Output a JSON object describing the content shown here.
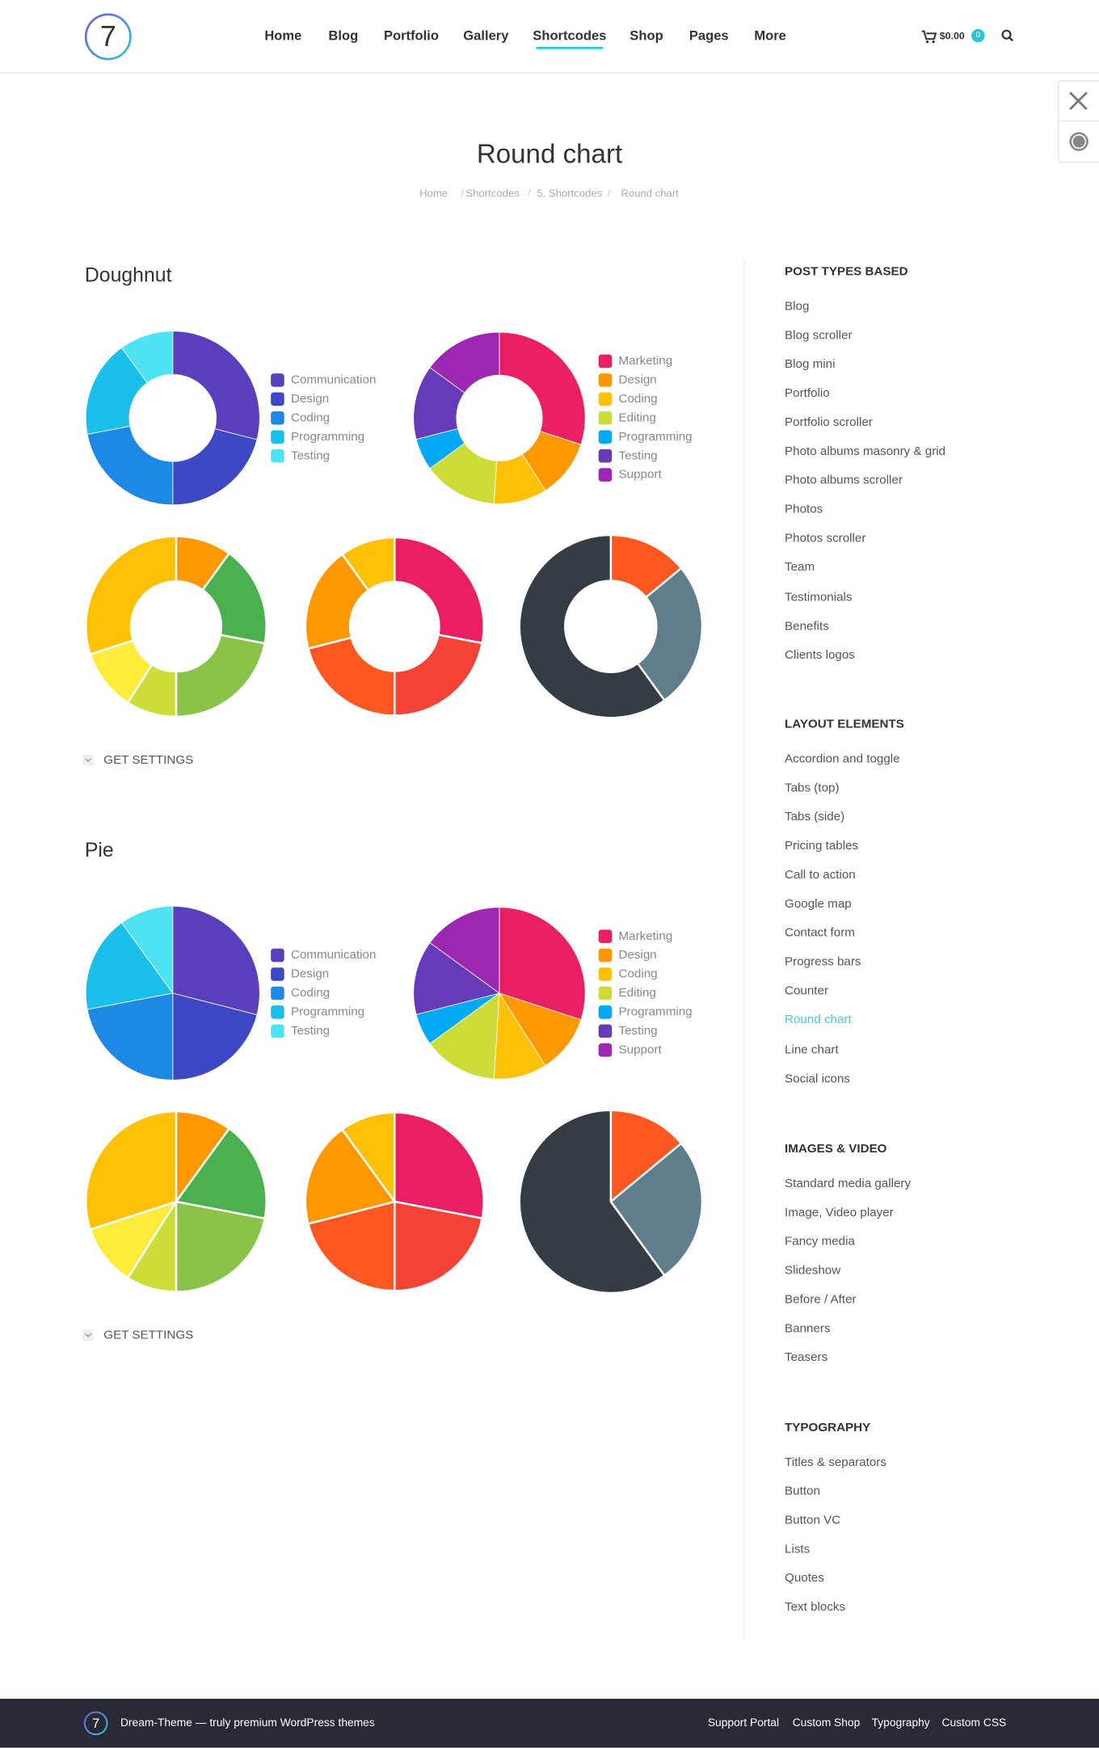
{
  "header": {
    "logo": "7",
    "nav": [
      "Home",
      "Blog",
      "Portfolio",
      "Gallery",
      "Shortcodes",
      "Shop",
      "Pages",
      "More"
    ],
    "active_nav": 4,
    "cart_total": "$0.00",
    "cart_count": 0
  },
  "page": {
    "title": "Round chart",
    "breadcrumbs": [
      "Home",
      "Shortcodes",
      "5. Shortcodes",
      "Round chart"
    ]
  },
  "sections": [
    {
      "title": "Doughnut",
      "settings_label": "GET SETTINGS",
      "chart_data": [
        {
          "type": "doughnut",
          "categories": [
            "Communication",
            "Design",
            "Coding",
            "Programming",
            "Testing"
          ],
          "values": [
            29,
            21,
            22,
            18,
            10
          ],
          "colors": [
            "#5a3fbd",
            "#3f48c4",
            "#1e88e5",
            "#1bc0ea",
            "#4de3f2"
          ]
        },
        {
          "type": "doughnut",
          "categories": [
            "Marketing",
            "Design",
            "Coding",
            "Editing",
            "Programming",
            "Testing",
            "Support"
          ],
          "values": [
            30,
            11,
            10,
            14,
            6,
            14,
            15
          ],
          "colors": [
            "#e91e63",
            "#ff9800",
            "#ffc107",
            "#cddc39",
            "#03a9f4",
            "#673ab7",
            "#9c27b0"
          ]
        },
        {
          "type": "doughnut",
          "values": [
            10,
            18,
            22,
            9,
            11,
            30
          ],
          "colors": [
            "#ff9800",
            "#4caf50",
            "#8bc34a",
            "#cddc39",
            "#ffeb3b",
            "#ffc107"
          ]
        },
        {
          "type": "doughnut",
          "values": [
            28,
            22,
            21,
            19,
            10
          ],
          "colors": [
            "#e91e63",
            "#f44336",
            "#ff5722",
            "#ff9800",
            "#ffc107"
          ]
        },
        {
          "type": "doughnut",
          "values": [
            14,
            26,
            60
          ],
          "colors": [
            "#ff5722",
            "#607d8b",
            "#353c44"
          ]
        }
      ]
    },
    {
      "title": "Pie",
      "settings_label": "GET SETTINGS",
      "chart_data": [
        {
          "type": "pie",
          "categories": [
            "Communication",
            "Design",
            "Coding",
            "Programming",
            "Testing"
          ],
          "values": [
            29,
            21,
            22,
            18,
            10
          ],
          "colors": [
            "#5a3fbd",
            "#3f48c4",
            "#1e88e5",
            "#1bc0ea",
            "#4de3f2"
          ]
        },
        {
          "type": "pie",
          "categories": [
            "Marketing",
            "Design",
            "Coding",
            "Editing",
            "Programming",
            "Testing",
            "Support"
          ],
          "values": [
            30,
            11,
            10,
            14,
            6,
            14,
            15
          ],
          "colors": [
            "#e91e63",
            "#ff9800",
            "#ffc107",
            "#cddc39",
            "#03a9f4",
            "#673ab7",
            "#9c27b0"
          ]
        },
        {
          "type": "pie",
          "values": [
            10,
            18,
            22,
            9,
            11,
            30
          ],
          "colors": [
            "#ff9800",
            "#4caf50",
            "#8bc34a",
            "#cddc39",
            "#ffeb3b",
            "#ffc107"
          ]
        },
        {
          "type": "pie",
          "values": [
            28,
            22,
            21,
            19,
            10
          ],
          "colors": [
            "#e91e63",
            "#f44336",
            "#ff5722",
            "#ff9800",
            "#ffc107"
          ]
        },
        {
          "type": "pie",
          "values": [
            14,
            26,
            60
          ],
          "colors": [
            "#ff5722",
            "#607d8b",
            "#353c44"
          ]
        }
      ]
    }
  ],
  "sidebar": {
    "groups": [
      {
        "title": "POST TYPES BASED",
        "items": [
          "Blog",
          "Blog scroller",
          "Blog mini",
          "Portfolio",
          "Portfolio scroller",
          "Photo albums masonry & grid",
          "Photo albums scroller",
          "Photos",
          "Photos scroller",
          "Team",
          "Testimonials",
          "Benefits",
          "Clients logos"
        ]
      },
      {
        "title": "LAYOUT ELEMENTS",
        "items": [
          "Accordion and toggle",
          "Tabs (top)",
          "Tabs (side)",
          "Pricing tables",
          "Call to action",
          "Google map",
          "Contact form",
          "Progress bars",
          "Counter",
          "Round chart",
          "Line chart",
          "Social icons"
        ]
      },
      {
        "title": "IMAGES & VIDEO",
        "items": [
          "Standard media gallery",
          "Image, Video player",
          "Fancy media",
          "Slideshow",
          "Before / After",
          "Banners",
          "Teasers"
        ]
      },
      {
        "title": "TYPOGRAPHY",
        "items": [
          "Titles & separators",
          "Button",
          "Button VC",
          "Lists",
          "Quotes",
          "Text blocks"
        ]
      }
    ],
    "active": [
      1,
      9
    ]
  },
  "footer": {
    "text": "Dream-Theme — truly premium WordPress themes",
    "logo": "7",
    "links": [
      "Support Portal",
      "Custom Shop",
      "Typography",
      "Custom CSS"
    ]
  }
}
